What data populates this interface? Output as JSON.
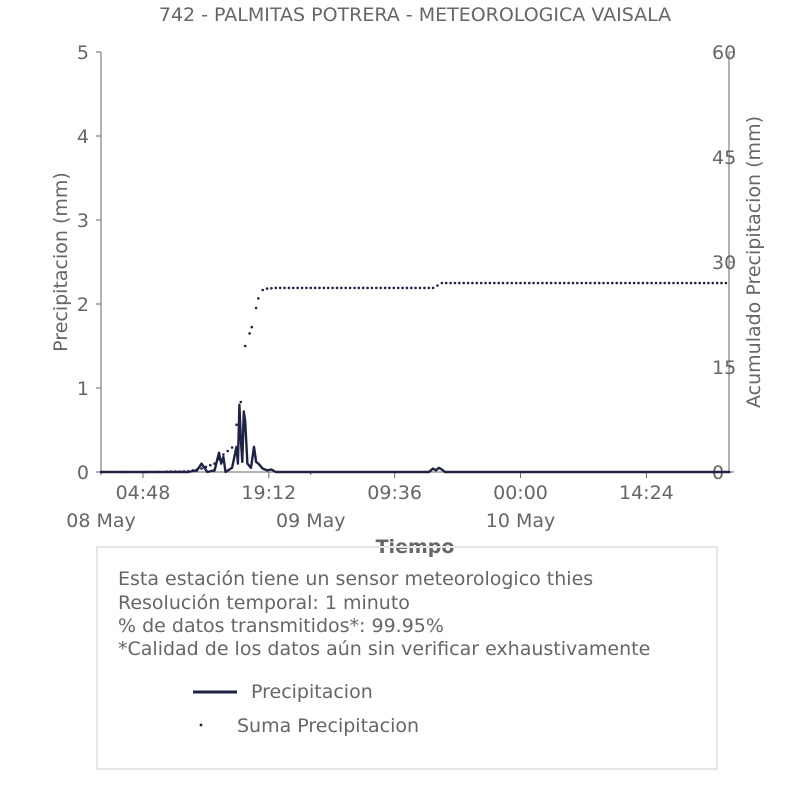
{
  "chart_data": {
    "type": "line",
    "title": "742 - PALMITAS POTRERA - METEOROLOGICA VAISALA",
    "xlabel": "Tiempo",
    "ylabel": "Precipitacion (mm)",
    "y2label": "Acumulado Precipitacion (mm)",
    "ylim": [
      0,
      5
    ],
    "y2lim": [
      0,
      60
    ],
    "yticks": [
      "0",
      "1",
      "2",
      "3",
      "4",
      "5"
    ],
    "y2ticks": [
      "0",
      "15",
      "30",
      "45",
      "60"
    ],
    "xticks": [
      "04:48",
      "19:12",
      "09:36",
      "00:00",
      "14:24"
    ],
    "date_labels": [
      "08 May",
      "09 May",
      "10 May"
    ],
    "series": [
      {
        "name": "Precipitacion",
        "axis": "left",
        "color": "#1f2145",
        "points": [
          [
            "2024-05-08 00:00",
            0.0
          ],
          [
            "2024-05-08 06:30",
            0.0
          ],
          [
            "2024-05-08 10:00",
            0.0
          ],
          [
            "2024-05-08 11:00",
            0.02
          ],
          [
            "2024-05-08 11:30",
            0.1
          ],
          [
            "2024-05-08 11:50",
            0.05
          ],
          [
            "2024-05-08 12:10",
            0.0
          ],
          [
            "2024-05-08 13:00",
            0.02
          ],
          [
            "2024-05-08 13:30",
            0.23
          ],
          [
            "2024-05-08 13:45",
            0.1
          ],
          [
            "2024-05-08 14:00",
            0.18
          ],
          [
            "2024-05-08 14:15",
            0.0
          ],
          [
            "2024-05-08 15:00",
            0.05
          ],
          [
            "2024-05-08 15:30",
            0.3
          ],
          [
            "2024-05-08 15:40",
            0.1
          ],
          [
            "2024-05-08 15:50",
            0.8
          ],
          [
            "2024-05-08 16:00",
            0.4
          ],
          [
            "2024-05-08 16:10",
            0.12
          ],
          [
            "2024-05-08 16:20",
            0.72
          ],
          [
            "2024-05-08 16:30",
            0.6
          ],
          [
            "2024-05-08 16:45",
            0.1
          ],
          [
            "2024-05-08 17:10",
            0.05
          ],
          [
            "2024-05-08 17:30",
            0.3
          ],
          [
            "2024-05-08 17:45",
            0.12
          ],
          [
            "2024-05-08 18:00",
            0.1
          ],
          [
            "2024-05-08 18:30",
            0.04
          ],
          [
            "2024-05-08 19:00",
            0.02
          ],
          [
            "2024-05-08 19:30",
            0.03
          ],
          [
            "2024-05-08 20:00",
            0.0
          ],
          [
            "2024-05-09 10:00",
            0.0
          ],
          [
            "2024-05-09 13:30",
            0.0
          ],
          [
            "2024-05-09 14:00",
            0.04
          ],
          [
            "2024-05-09 14:20",
            0.02
          ],
          [
            "2024-05-09 14:40",
            0.05
          ],
          [
            "2024-05-09 15:00",
            0.03
          ],
          [
            "2024-05-09 15:20",
            0.0
          ],
          [
            "2024-05-10 12:00",
            0.0
          ],
          [
            "2024-05-11 00:00",
            0.0
          ]
        ]
      },
      {
        "name": "Suma Precipitacion",
        "axis": "right",
        "color": "#1f2145",
        "points": [
          [
            "2024-05-08 00:00",
            0.0
          ],
          [
            "2024-05-08 06:00",
            0.0
          ],
          [
            "2024-05-08 10:00",
            0.1
          ],
          [
            "2024-05-08 11:30",
            0.5
          ],
          [
            "2024-05-08 13:00",
            1.2
          ],
          [
            "2024-05-08 14:00",
            2.5
          ],
          [
            "2024-05-08 15:00",
            3.5
          ],
          [
            "2024-05-08 16:00",
            10.0
          ],
          [
            "2024-05-08 16:30",
            18.0
          ],
          [
            "2024-05-08 17:15",
            20.7
          ],
          [
            "2024-05-08 18:00",
            24.8
          ],
          [
            "2024-05-08 18:30",
            26.0
          ],
          [
            "2024-05-08 19:00",
            26.2
          ],
          [
            "2024-05-08 20:00",
            26.3
          ],
          [
            "2024-05-09 14:00",
            26.3
          ],
          [
            "2024-05-09 15:00",
            27.0
          ],
          [
            "2024-05-11 00:00",
            27.0
          ]
        ]
      }
    ],
    "grid": false,
    "legend": "bottom"
  },
  "info": {
    "lines": [
      "Esta estación tiene un sensor meteorologico thies",
      "Resolución temporal: 1 minuto",
      "% de datos transmitidos*: 99.95%",
      "*Calidad de los datos aún sin verificar exhaustivamente"
    ]
  }
}
